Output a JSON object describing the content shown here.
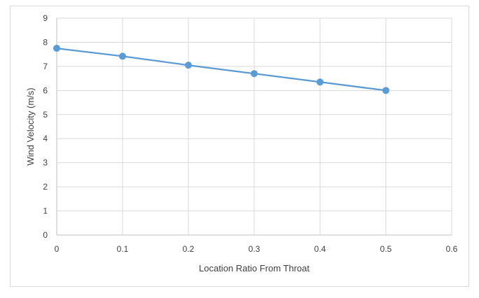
{
  "chart_data": {
    "type": "line",
    "title": "",
    "xlabel": "Location Ratio From Throat",
    "ylabel": "Wind Velocity (m/s)",
    "xlim": [
      0,
      0.6
    ],
    "ylim": [
      0,
      9
    ],
    "xticks": [
      0,
      0.1,
      0.2,
      0.3,
      0.4,
      0.5,
      0.6
    ],
    "yticks": [
      0,
      1,
      2,
      3,
      4,
      5,
      6,
      7,
      8,
      9
    ],
    "grid": true,
    "legend": "none",
    "series": [
      {
        "color": "#5b9bd5",
        "x": [
          0,
          0.1,
          0.2,
          0.3,
          0.4,
          0.5
        ],
        "y": [
          7.75,
          7.42,
          7.05,
          6.7,
          6.35,
          6.0
        ]
      }
    ]
  }
}
